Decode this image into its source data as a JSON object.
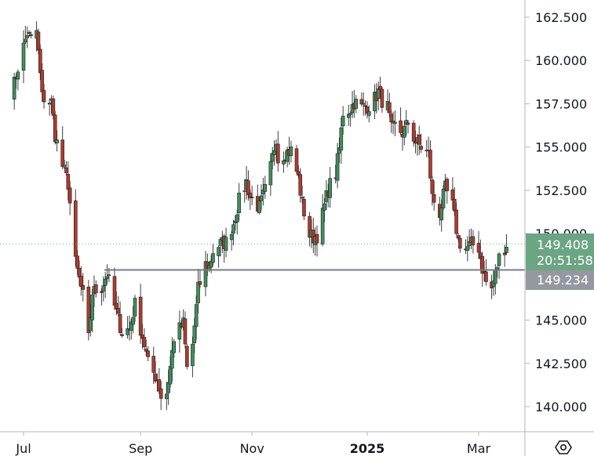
{
  "chart_data": {
    "type": "candlestick",
    "title": "",
    "ylim": [
      139.0,
      163.5
    ],
    "y_ticks": [
      "162.500",
      "160.000",
      "157.500",
      "155.000",
      "152.500",
      "150.000",
      "147.500",
      "145.000",
      "142.500",
      "140.000"
    ],
    "x_ticks": [
      {
        "label": "Jul",
        "bold": false,
        "date": "2024-07-01"
      },
      {
        "label": "Sep",
        "bold": false,
        "date": "2024-09-02"
      },
      {
        "label": "Nov",
        "bold": false,
        "date": "2024-11-01"
      },
      {
        "label": "2025",
        "bold": true,
        "date": "2025-01-02"
      },
      {
        "label": "Mar",
        "bold": false,
        "date": "2025-03-03"
      }
    ],
    "horizontal_line": {
      "value": 147.9,
      "color": "#787b86"
    },
    "last_price": {
      "value": "149.408",
      "countdown": "20:51:58",
      "color": "#6ba583"
    },
    "prev_price": {
      "value": "149.234",
      "color": "#9598a1"
    },
    "colors": {
      "up": "#26a69a",
      "down": "#ef5350",
      "wick": "#3d3d3d",
      "up_body": "#3f8f5c",
      "down_body": "#b13a2e"
    },
    "waypoints": [
      [
        "2024-06-25",
        158.2
      ],
      [
        "2024-06-28",
        159.6
      ],
      [
        "2024-07-03",
        161.6
      ],
      [
        "2024-07-05",
        161.2
      ],
      [
        "2024-07-08",
        161.7
      ],
      [
        "2024-07-11",
        157.9
      ],
      [
        "2024-07-16",
        157.6
      ],
      [
        "2024-07-18",
        155.7
      ],
      [
        "2024-07-22",
        153.9
      ],
      [
        "2024-07-25",
        152.9
      ],
      [
        "2024-07-29",
        148.3
      ],
      [
        "2024-08-02",
        146.4
      ],
      [
        "2024-08-05",
        143.9
      ],
      [
        "2024-08-07",
        146.6
      ],
      [
        "2024-08-12",
        146.9
      ],
      [
        "2024-08-15",
        147.7
      ],
      [
        "2024-08-19",
        145.8
      ],
      [
        "2024-08-23",
        144.3
      ],
      [
        "2024-08-27",
        144.5
      ],
      [
        "2024-08-30",
        145.9
      ],
      [
        "2024-09-04",
        143.6
      ],
      [
        "2024-09-06",
        142.5
      ],
      [
        "2024-09-11",
        141.6
      ],
      [
        "2024-09-13",
        140.6
      ],
      [
        "2024-09-16",
        140.8
      ],
      [
        "2024-09-18",
        142.3
      ],
      [
        "2024-09-20",
        144.0
      ],
      [
        "2024-09-25",
        144.8
      ],
      [
        "2024-09-27",
        142.2
      ],
      [
        "2024-09-30",
        143.6
      ],
      [
        "2024-10-03",
        146.8
      ],
      [
        "2024-10-07",
        148.2
      ],
      [
        "2024-10-09",
        148.1
      ],
      [
        "2024-10-11",
        149.0
      ],
      [
        "2024-10-15",
        149.4
      ],
      [
        "2024-10-18",
        149.5
      ],
      [
        "2024-10-22",
        150.6
      ],
      [
        "2024-10-25",
        151.9
      ],
      [
        "2024-10-29",
        153.0
      ],
      [
        "2024-10-31",
        152.1
      ],
      [
        "2024-11-05",
        151.5
      ],
      [
        "2024-11-08",
        152.5
      ],
      [
        "2024-11-11",
        153.8
      ],
      [
        "2024-11-14",
        155.6
      ],
      [
        "2024-11-15",
        154.3
      ],
      [
        "2024-11-19",
        154.7
      ],
      [
        "2024-11-22",
        154.8
      ],
      [
        "2024-11-26",
        153.2
      ],
      [
        "2024-11-28",
        151.7
      ],
      [
        "2024-12-02",
        149.9
      ],
      [
        "2024-12-04",
        149.8
      ],
      [
        "2024-12-06",
        149.9
      ],
      [
        "2024-12-09",
        151.1
      ],
      [
        "2024-12-12",
        152.6
      ],
      [
        "2024-12-16",
        153.5
      ],
      [
        "2024-12-18",
        154.9
      ],
      [
        "2024-12-20",
        157.0
      ],
      [
        "2024-12-24",
        157.2
      ],
      [
        "2024-12-26",
        157.6
      ],
      [
        "2024-12-30",
        157.3
      ],
      [
        "2025-01-03",
        157.4
      ],
      [
        "2025-01-06",
        157.8
      ],
      [
        "2025-01-08",
        158.2
      ],
      [
        "2025-01-10",
        157.7
      ],
      [
        "2025-01-13",
        157.3
      ],
      [
        "2025-01-15",
        156.0
      ],
      [
        "2025-01-17",
        156.2
      ],
      [
        "2025-01-21",
        155.8
      ],
      [
        "2025-01-24",
        156.4
      ],
      [
        "2025-01-28",
        155.3
      ],
      [
        "2025-01-31",
        155.0
      ],
      [
        "2025-02-04",
        154.6
      ],
      [
        "2025-02-06",
        152.1
      ],
      [
        "2025-02-10",
        151.2
      ],
      [
        "2025-02-13",
        152.6
      ],
      [
        "2025-02-17",
        151.6
      ],
      [
        "2025-02-20",
        149.6
      ],
      [
        "2025-02-24",
        149.1
      ],
      [
        "2025-02-27",
        149.4
      ],
      [
        "2025-03-03",
        149.2
      ],
      [
        "2025-03-05",
        148.0
      ],
      [
        "2025-03-07",
        147.2
      ],
      [
        "2025-03-10",
        146.8
      ],
      [
        "2025-03-12",
        147.7
      ],
      [
        "2025-03-14",
        148.6
      ],
      [
        "2025-03-18",
        149.4
      ]
    ]
  }
}
